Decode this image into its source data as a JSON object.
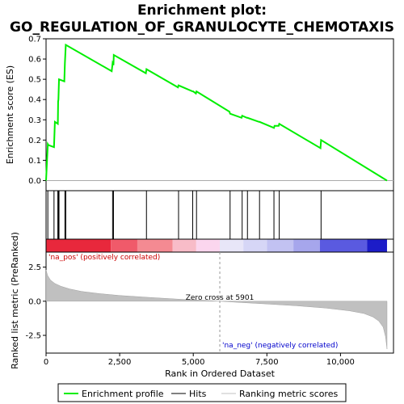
{
  "chart_data": {
    "type": "line",
    "title_line1": "Enrichment plot:",
    "title_line2": "GO_REGULATION_OF_GRANULOCYTE_CHEMOTAXIS",
    "top_panel": {
      "ylabel": "Enrichment score (ES)",
      "ylim": [
        -0.05,
        0.7
      ],
      "yticks": [
        0.0,
        0.1,
        0.2,
        0.3,
        0.4,
        0.5,
        0.6,
        0.7
      ],
      "ytick_labels": [
        "0.0",
        "0.1",
        "0.2",
        "0.3",
        "0.4",
        "0.5",
        "0.6",
        "0.7"
      ],
      "series_name": "Enrichment profile",
      "series_color": "#00ee00",
      "x": [
        0,
        60,
        80,
        270,
        300,
        400,
        410,
        420,
        440,
        620,
        640,
        670,
        2230,
        2260,
        2290,
        2300,
        3390,
        3410,
        4480,
        4500,
        4980,
        5000,
        5090,
        5110,
        6230,
        6250,
        6640,
        6660,
        6820,
        6840,
        7230,
        7250,
        7740,
        7760,
        7900,
        7920,
        9320,
        9340,
        11580
      ],
      "y": [
        0.0,
        0.18,
        0.175,
        0.165,
        0.29,
        0.28,
        0.39,
        0.4,
        0.5,
        0.49,
        0.58,
        0.67,
        0.54,
        0.58,
        0.57,
        0.62,
        0.53,
        0.55,
        0.46,
        0.47,
        0.44,
        0.44,
        0.43,
        0.44,
        0.34,
        0.33,
        0.31,
        0.32,
        0.31,
        0.31,
        0.29,
        0.29,
        0.26,
        0.27,
        0.27,
        0.28,
        0.16,
        0.2,
        0.0
      ]
    },
    "hits": {
      "series_name": "Hits",
      "positions": [
        60,
        270,
        400,
        420,
        440,
        640,
        670,
        2260,
        2290,
        3410,
        4500,
        4980,
        5110,
        6250,
        6660,
        6840,
        7250,
        7740,
        7920,
        9340
      ]
    },
    "rank_colorbar": {
      "segments": [
        {
          "x0": 0,
          "x1": 2200,
          "color": "#e8283c"
        },
        {
          "x0": 2200,
          "x1": 3100,
          "color": "#f05a6a"
        },
        {
          "x0": 3100,
          "x1": 4300,
          "color": "#f48a92"
        },
        {
          "x0": 4300,
          "x1": 5100,
          "color": "#f8bcc8"
        },
        {
          "x0": 5100,
          "x1": 5900,
          "color": "#fbd6ee"
        },
        {
          "x0": 5900,
          "x1": 6700,
          "color": "#e8e6f8"
        },
        {
          "x0": 6700,
          "x1": 7500,
          "color": "#d6d6f6"
        },
        {
          "x0": 7500,
          "x1": 8400,
          "color": "#c2c2f2"
        },
        {
          "x0": 8400,
          "x1": 9300,
          "color": "#a6a6ec"
        },
        {
          "x0": 9300,
          "x1": 10900,
          "color": "#5a5ae0"
        },
        {
          "x0": 10900,
          "x1": 11580,
          "color": "#1c1cc8"
        }
      ]
    },
    "bottom_panel": {
      "ylabel": "Ranked list metric (PreRanked)",
      "xlabel": "Rank in Ordered Dataset",
      "ylim": [
        -3.8,
        3.6
      ],
      "yticks": [
        -2.5,
        0.0,
        2.5
      ],
      "ytick_labels": [
        "-2.5",
        "0.0",
        "2.5"
      ],
      "xlim": [
        0,
        11800
      ],
      "xticks": [
        0,
        2500,
        5000,
        7500,
        10000
      ],
      "xtick_labels": [
        "0",
        "2,500",
        "5,000",
        "7,500",
        "10,000"
      ],
      "series_name": "Ranking metric scores",
      "metric_x": [
        0,
        50,
        150,
        300,
        500,
        800,
        1200,
        1800,
        2500,
        3500,
        4500,
        5500,
        5901,
        6500,
        7500,
        8500,
        9500,
        10300,
        10800,
        11100,
        11300,
        11450,
        11530,
        11580
      ],
      "metric_y": [
        2.3,
        1.9,
        1.55,
        1.3,
        1.1,
        0.9,
        0.72,
        0.56,
        0.42,
        0.28,
        0.15,
        0.05,
        0.0,
        -0.08,
        -0.2,
        -0.33,
        -0.5,
        -0.7,
        -0.9,
        -1.15,
        -1.45,
        -1.9,
        -2.6,
        -3.5
      ],
      "zero_cross_label": "Zero cross at 5901",
      "zero_cross_x": 5901,
      "pos_label": "'na_pos' (positively correlated)",
      "neg_label": "'na_neg' (negatively correlated)",
      "pos_color": "#cc0000",
      "neg_color": "#0000cc"
    },
    "legend": [
      "Enrichment profile",
      "Hits",
      "Ranking metric scores"
    ]
  }
}
